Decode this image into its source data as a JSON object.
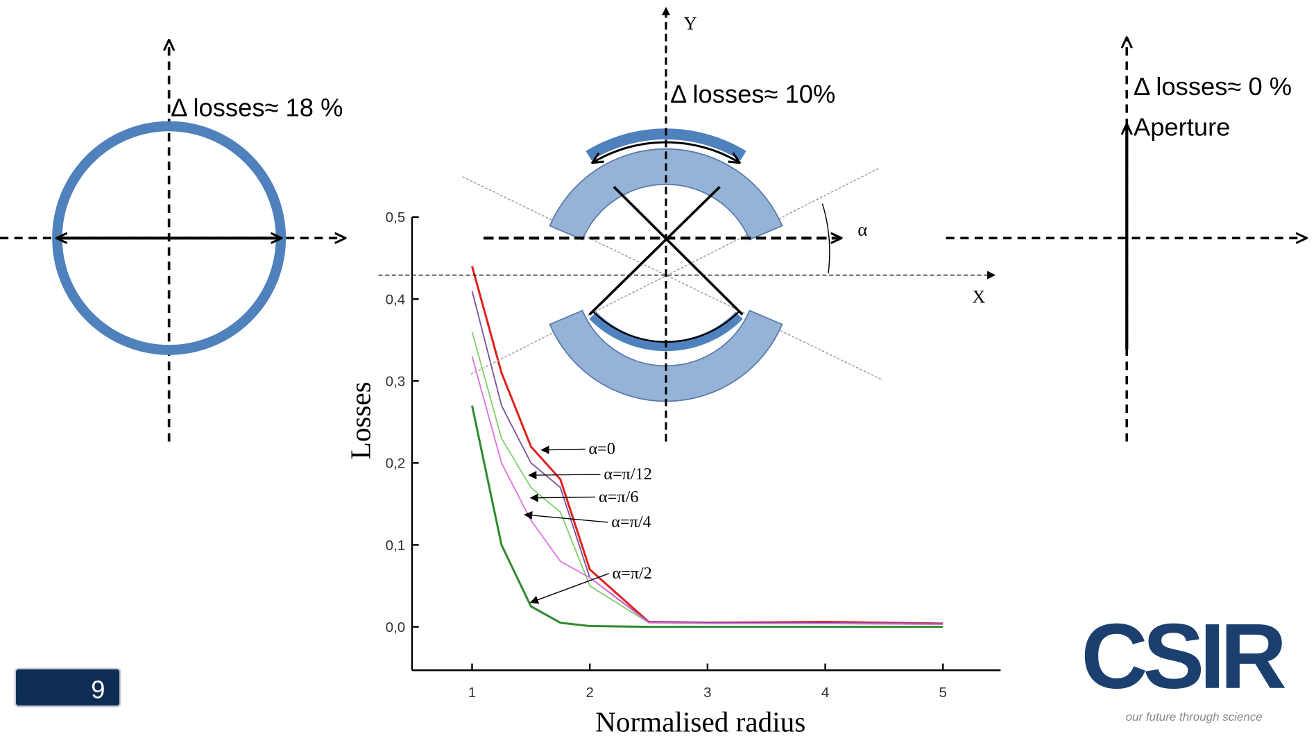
{
  "slide": {
    "page_number": "9",
    "left_label": "Δ losses≈ 18 %",
    "middle_label": "Δ losses≈ 10%",
    "right_label": "Δ losses≈ 0 %",
    "aperture_label": "Aperture",
    "y_axis_letter": "Y",
    "x_axis_letter": "X",
    "angle_letter": "α",
    "logo": "CSIR",
    "tagline": "our future through science"
  },
  "chart_data": {
    "type": "line",
    "x_label": "Normalised radius",
    "y_label": "Losses",
    "x": [
      1,
      1.25,
      1.5,
      1.75,
      2,
      2.5,
      3,
      4,
      5
    ],
    "series": [
      {
        "name": "α=0",
        "color": "#e0201e",
        "values": [
          0.44,
          0.31,
          0.22,
          0.18,
          0.07,
          0.006,
          0.005,
          0.006,
          0.004
        ]
      },
      {
        "name": "α=π/12",
        "color": "#7a4fa0",
        "values": [
          0.41,
          0.27,
          0.2,
          0.17,
          0.06,
          0.006,
          0.005,
          0.005,
          0.004
        ]
      },
      {
        "name": "α=π/6",
        "color": "#7fd06a",
        "values": [
          0.36,
          0.23,
          0.17,
          0.14,
          0.05,
          0.005,
          0.004,
          0.004,
          0.003
        ]
      },
      {
        "name": "α=π/4",
        "color": "#e070e0",
        "values": [
          0.33,
          0.2,
          0.13,
          0.08,
          0.06,
          0.005,
          0.004,
          0.004,
          0.003
        ]
      },
      {
        "name": "α=π/2",
        "color": "#2f8a2f",
        "values": [
          0.27,
          0.1,
          0.025,
          0.005,
          0.001,
          0,
          0,
          0,
          0
        ]
      }
    ],
    "xlim": [
      0.49,
      5.49
    ],
    "ylim": [
      -0.053,
      0.5
    ],
    "xticks": [
      1,
      2,
      3,
      4,
      5
    ],
    "yticks": [
      {
        "value": 0,
        "label": "0,0"
      },
      {
        "value": 0.1,
        "label": "0,1"
      },
      {
        "value": 0.2,
        "label": "0,2"
      },
      {
        "value": 0.3,
        "label": "0,3"
      },
      {
        "value": 0.4,
        "label": "0,4"
      },
      {
        "value": 0.5,
        "label": "0,5"
      }
    ]
  }
}
